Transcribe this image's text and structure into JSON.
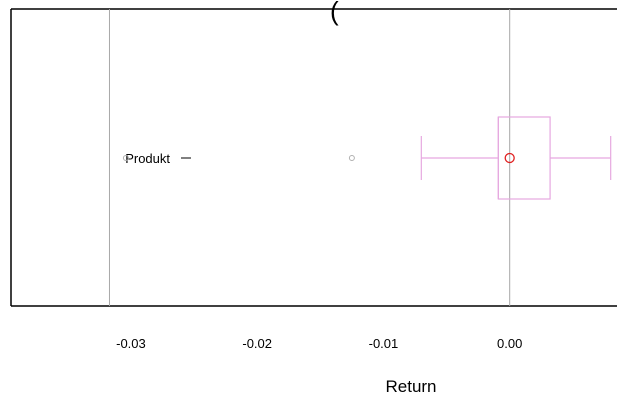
{
  "chart_data": {
    "type": "boxplot",
    "title": "(",
    "xlabel": "Return",
    "ylabel": "",
    "orientation": "horizontal",
    "xlim": [
      -0.0395,
      0.0085
    ],
    "x_ticks": [
      -0.03,
      -0.02,
      -0.01,
      0.0
    ],
    "x_tick_labels": [
      "-0.03",
      "-0.02",
      "-0.01",
      "0.00"
    ],
    "reference_lines": [
      -0.0317,
      0.0
    ],
    "categories": [
      "Produkt"
    ],
    "series": [
      {
        "category": "Produkt",
        "whisker_low": -0.007,
        "q1": -0.0009,
        "median": -0.0009,
        "q3": 0.0032,
        "whisker_high": 0.008,
        "outliers": [
          -0.0304,
          -0.0125
        ],
        "highlight_point": 0.0
      }
    ],
    "grid": false,
    "colors": {
      "box": "#e6a8e0",
      "whisker": "#e6a8e0",
      "outlier": "#b0b0b0",
      "highlight": "#e02020",
      "reference_line": "#a8a8a8",
      "frame": "#000000"
    }
  }
}
